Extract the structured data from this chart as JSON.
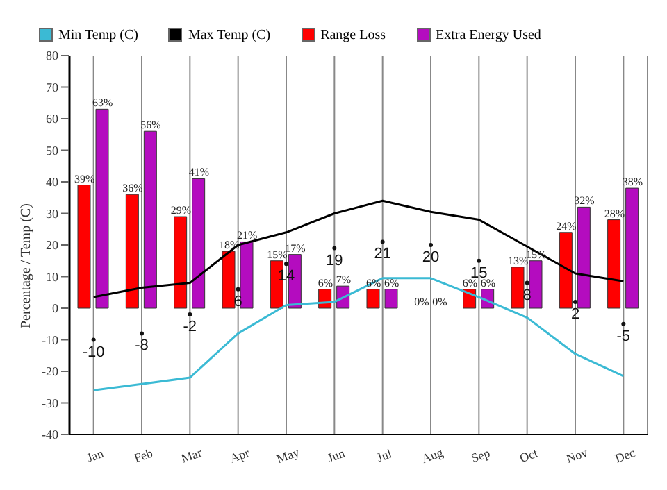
{
  "chart_data": {
    "type": "bar",
    "ylabel": "Percentage / Temp (C)",
    "categories": [
      "Jan",
      "Feb",
      "Mar",
      "Apr",
      "May",
      "Jun",
      "Jul",
      "Aug",
      "Sep",
      "Oct",
      "Nov",
      "Dec"
    ],
    "series": [
      {
        "name": "Min Temp (C)",
        "type": "line",
        "color": "#3bbad4",
        "values": [
          -26,
          -24,
          -22,
          -8,
          1,
          2,
          9.5,
          9.5,
          3.5,
          -3,
          -14.5,
          -21.5
        ]
      },
      {
        "name": "Max Temp (C)",
        "type": "line",
        "color": "#000000",
        "values": [
          3.5,
          6.5,
          8,
          20,
          24,
          30,
          34,
          30.5,
          28,
          19.5,
          11,
          8.5
        ]
      },
      {
        "name": "Range Loss",
        "color": "#ff0000",
        "values": [
          39,
          36,
          29,
          18,
          15,
          6,
          6,
          0,
          6,
          13,
          24,
          28
        ],
        "value_labels": [
          "39%",
          "36%",
          "29%",
          "18%",
          "15%",
          "6%",
          "6%",
          "0%",
          "6%",
          "13%",
          "24%",
          "28%"
        ]
      },
      {
        "name": "Extra Energy Used",
        "color": "#b40cbf",
        "values": [
          63,
          56,
          41,
          21,
          17,
          7,
          6,
          0,
          6,
          15,
          32,
          38
        ],
        "value_labels": [
          "63%",
          "56%",
          "41%",
          "21%",
          "17%",
          "7%",
          "6%",
          "0%",
          "6%",
          "15%",
          "32%",
          "38%"
        ]
      },
      {
        "type": "scatter",
        "color": "#111111",
        "marker": "circle",
        "values": [
          -10,
          -8,
          -2,
          6,
          14,
          19,
          21,
          20,
          15,
          8,
          2,
          -5
        ],
        "value_labels": [
          "-10",
          "-8",
          "-2",
          "6",
          "14",
          "19",
          "21",
          "20",
          "15",
          "8",
          "2",
          "-5"
        ]
      }
    ],
    "ylim": [
      -40,
      80
    ],
    "yticks": [
      -40,
      -30,
      -20,
      -10,
      0,
      10,
      20,
      30,
      40,
      50,
      60,
      70,
      80
    ],
    "grid": "x",
    "legend": "top left",
    "marker": "none",
    "line_style": "solid"
  }
}
